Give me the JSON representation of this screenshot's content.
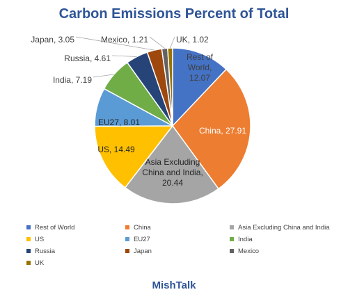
{
  "chart_data": {
    "type": "pie",
    "title": "Carbon Emissions Percent of Total",
    "slices": [
      {
        "name": "Rest of World",
        "value": 12.07,
        "color": "#4472c4",
        "label_lines": [
          "Rest of",
          "World,",
          "12.07"
        ],
        "label_color": "#404040"
      },
      {
        "name": "China",
        "value": 27.91,
        "color": "#ed7d31",
        "label_lines": [
          "China, 27.91"
        ],
        "label_color": "#ffffff"
      },
      {
        "name": "Asia Excluding China and India",
        "value": 20.44,
        "color": "#a5a5a5",
        "label_lines": [
          "Asia Excluding",
          "China and India,",
          "20.44"
        ],
        "label_color": "#262626"
      },
      {
        "name": "US",
        "value": 14.49,
        "color": "#ffc000",
        "label_lines": [
          "US, 14.49"
        ],
        "label_color": "#262626"
      },
      {
        "name": "EU27",
        "value": 8.01,
        "color": "#5b9bd5",
        "label_lines": [
          "EU27, 8.01"
        ],
        "label_color": "#262626"
      },
      {
        "name": "India",
        "value": 7.19,
        "color": "#70ad47",
        "label_lines": [
          "India, 7.19"
        ],
        "label_color": "#404040"
      },
      {
        "name": "Russia",
        "value": 4.61,
        "color": "#264478",
        "label_lines": [
          "Russia, 4.61"
        ],
        "label_color": "#404040"
      },
      {
        "name": "Japan",
        "value": 3.05,
        "color": "#9e480e",
        "label_lines": [
          "Japan, 3.05"
        ],
        "label_color": "#404040"
      },
      {
        "name": "Mexico",
        "value": 1.21,
        "color": "#636363",
        "label_lines": [
          "Mexico, 1.21"
        ],
        "label_color": "#404040"
      },
      {
        "name": "UK",
        "value": 1.02,
        "color": "#997300",
        "label_lines": [
          "UK, 1.02"
        ],
        "label_color": "#404040"
      }
    ],
    "legend_position": "bottom"
  },
  "footer": "MishTalk"
}
